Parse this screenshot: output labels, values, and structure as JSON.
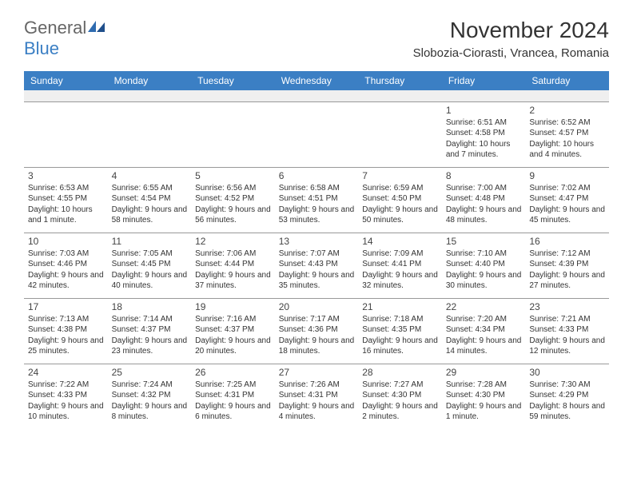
{
  "brand": {
    "part1": "General",
    "part2": "Blue"
  },
  "title": "November 2024",
  "location": "Slobozia-Ciorasti, Vrancea, Romania",
  "colors": {
    "header_bg": "#3b7fc4",
    "header_text": "#ffffff",
    "border": "#999999",
    "empty_row": "#efefef",
    "text": "#333333"
  },
  "day_headers": [
    "Sunday",
    "Monday",
    "Tuesday",
    "Wednesday",
    "Thursday",
    "Friday",
    "Saturday"
  ],
  "weeks": [
    [
      null,
      null,
      null,
      null,
      null,
      {
        "n": "1",
        "sunrise": "Sunrise: 6:51 AM",
        "sunset": "Sunset: 4:58 PM",
        "daylight": "Daylight: 10 hours and 7 minutes."
      },
      {
        "n": "2",
        "sunrise": "Sunrise: 6:52 AM",
        "sunset": "Sunset: 4:57 PM",
        "daylight": "Daylight: 10 hours and 4 minutes."
      }
    ],
    [
      {
        "n": "3",
        "sunrise": "Sunrise: 6:53 AM",
        "sunset": "Sunset: 4:55 PM",
        "daylight": "Daylight: 10 hours and 1 minute."
      },
      {
        "n": "4",
        "sunrise": "Sunrise: 6:55 AM",
        "sunset": "Sunset: 4:54 PM",
        "daylight": "Daylight: 9 hours and 58 minutes."
      },
      {
        "n": "5",
        "sunrise": "Sunrise: 6:56 AM",
        "sunset": "Sunset: 4:52 PM",
        "daylight": "Daylight: 9 hours and 56 minutes."
      },
      {
        "n": "6",
        "sunrise": "Sunrise: 6:58 AM",
        "sunset": "Sunset: 4:51 PM",
        "daylight": "Daylight: 9 hours and 53 minutes."
      },
      {
        "n": "7",
        "sunrise": "Sunrise: 6:59 AM",
        "sunset": "Sunset: 4:50 PM",
        "daylight": "Daylight: 9 hours and 50 minutes."
      },
      {
        "n": "8",
        "sunrise": "Sunrise: 7:00 AM",
        "sunset": "Sunset: 4:48 PM",
        "daylight": "Daylight: 9 hours and 48 minutes."
      },
      {
        "n": "9",
        "sunrise": "Sunrise: 7:02 AM",
        "sunset": "Sunset: 4:47 PM",
        "daylight": "Daylight: 9 hours and 45 minutes."
      }
    ],
    [
      {
        "n": "10",
        "sunrise": "Sunrise: 7:03 AM",
        "sunset": "Sunset: 4:46 PM",
        "daylight": "Daylight: 9 hours and 42 minutes."
      },
      {
        "n": "11",
        "sunrise": "Sunrise: 7:05 AM",
        "sunset": "Sunset: 4:45 PM",
        "daylight": "Daylight: 9 hours and 40 minutes."
      },
      {
        "n": "12",
        "sunrise": "Sunrise: 7:06 AM",
        "sunset": "Sunset: 4:44 PM",
        "daylight": "Daylight: 9 hours and 37 minutes."
      },
      {
        "n": "13",
        "sunrise": "Sunrise: 7:07 AM",
        "sunset": "Sunset: 4:43 PM",
        "daylight": "Daylight: 9 hours and 35 minutes."
      },
      {
        "n": "14",
        "sunrise": "Sunrise: 7:09 AM",
        "sunset": "Sunset: 4:41 PM",
        "daylight": "Daylight: 9 hours and 32 minutes."
      },
      {
        "n": "15",
        "sunrise": "Sunrise: 7:10 AM",
        "sunset": "Sunset: 4:40 PM",
        "daylight": "Daylight: 9 hours and 30 minutes."
      },
      {
        "n": "16",
        "sunrise": "Sunrise: 7:12 AM",
        "sunset": "Sunset: 4:39 PM",
        "daylight": "Daylight: 9 hours and 27 minutes."
      }
    ],
    [
      {
        "n": "17",
        "sunrise": "Sunrise: 7:13 AM",
        "sunset": "Sunset: 4:38 PM",
        "daylight": "Daylight: 9 hours and 25 minutes."
      },
      {
        "n": "18",
        "sunrise": "Sunrise: 7:14 AM",
        "sunset": "Sunset: 4:37 PM",
        "daylight": "Daylight: 9 hours and 23 minutes."
      },
      {
        "n": "19",
        "sunrise": "Sunrise: 7:16 AM",
        "sunset": "Sunset: 4:37 PM",
        "daylight": "Daylight: 9 hours and 20 minutes."
      },
      {
        "n": "20",
        "sunrise": "Sunrise: 7:17 AM",
        "sunset": "Sunset: 4:36 PM",
        "daylight": "Daylight: 9 hours and 18 minutes."
      },
      {
        "n": "21",
        "sunrise": "Sunrise: 7:18 AM",
        "sunset": "Sunset: 4:35 PM",
        "daylight": "Daylight: 9 hours and 16 minutes."
      },
      {
        "n": "22",
        "sunrise": "Sunrise: 7:20 AM",
        "sunset": "Sunset: 4:34 PM",
        "daylight": "Daylight: 9 hours and 14 minutes."
      },
      {
        "n": "23",
        "sunrise": "Sunrise: 7:21 AM",
        "sunset": "Sunset: 4:33 PM",
        "daylight": "Daylight: 9 hours and 12 minutes."
      }
    ],
    [
      {
        "n": "24",
        "sunrise": "Sunrise: 7:22 AM",
        "sunset": "Sunset: 4:33 PM",
        "daylight": "Daylight: 9 hours and 10 minutes."
      },
      {
        "n": "25",
        "sunrise": "Sunrise: 7:24 AM",
        "sunset": "Sunset: 4:32 PM",
        "daylight": "Daylight: 9 hours and 8 minutes."
      },
      {
        "n": "26",
        "sunrise": "Sunrise: 7:25 AM",
        "sunset": "Sunset: 4:31 PM",
        "daylight": "Daylight: 9 hours and 6 minutes."
      },
      {
        "n": "27",
        "sunrise": "Sunrise: 7:26 AM",
        "sunset": "Sunset: 4:31 PM",
        "daylight": "Daylight: 9 hours and 4 minutes."
      },
      {
        "n": "28",
        "sunrise": "Sunrise: 7:27 AM",
        "sunset": "Sunset: 4:30 PM",
        "daylight": "Daylight: 9 hours and 2 minutes."
      },
      {
        "n": "29",
        "sunrise": "Sunrise: 7:28 AM",
        "sunset": "Sunset: 4:30 PM",
        "daylight": "Daylight: 9 hours and 1 minute."
      },
      {
        "n": "30",
        "sunrise": "Sunrise: 7:30 AM",
        "sunset": "Sunset: 4:29 PM",
        "daylight": "Daylight: 8 hours and 59 minutes."
      }
    ]
  ]
}
